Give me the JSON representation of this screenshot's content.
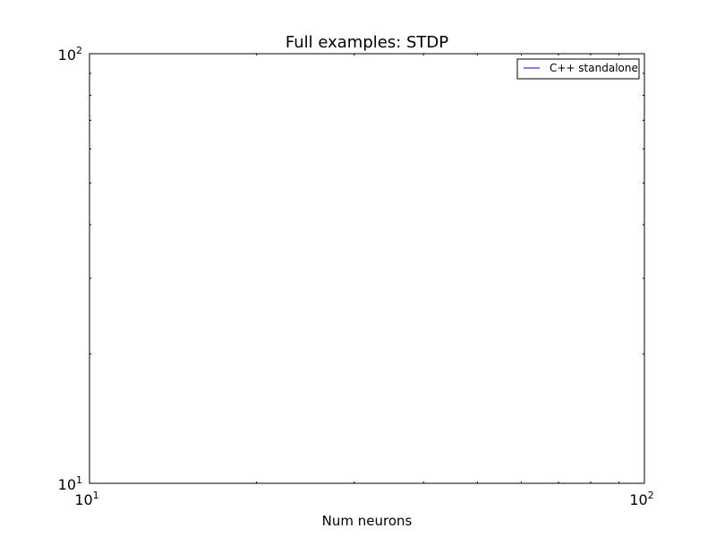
{
  "chart_data": {
    "type": "line",
    "title": "Full examples: STDP",
    "xlabel": "Num neurons",
    "ylabel": "",
    "xscale": "log",
    "yscale": "log",
    "xlim": [
      10,
      100
    ],
    "ylim": [
      10,
      100
    ],
    "grid": false,
    "legend_position": "top-right",
    "x_ticks": [
      {
        "value": 10,
        "base": "10",
        "exp": "1"
      },
      {
        "value": 100,
        "base": "10",
        "exp": "2"
      }
    ],
    "y_ticks": [
      {
        "value": 10,
        "base": "10",
        "exp": "1"
      },
      {
        "value": 100,
        "base": "10",
        "exp": "2"
      }
    ],
    "series": [
      {
        "name": "C++ standalone",
        "color": "#0000ff",
        "x": [],
        "y": []
      }
    ]
  }
}
